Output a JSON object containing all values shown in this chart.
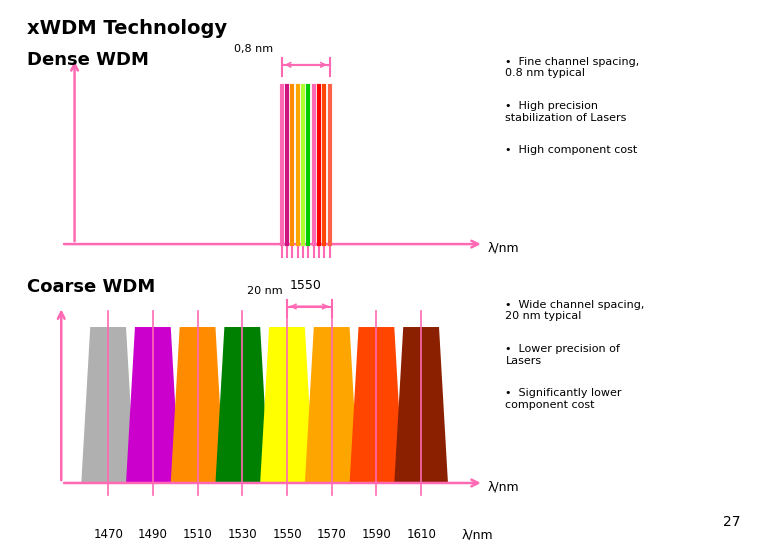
{
  "title": "xWDM Technology",
  "bg_color": "#ffffff",
  "pink": "#FF69B4",
  "dense_label": "Dense WDM",
  "coarse_label": "Coarse WDM",
  "dense_bullets": [
    "Fine channel spacing,\n0.8 nm typical",
    "High precision\nstabilization of Lasers",
    "High component cost"
  ],
  "coarse_bullets": [
    "Wide channel spacing,\n20 nm typical",
    "Lower precision of\nLasers",
    "Significantly lower\ncomponent cost"
  ],
  "dense_spacing_label": "0,8 nm",
  "coarse_spacing_label": "20 nm",
  "dense_colors": [
    "#FF69B4",
    "#CC1480",
    "#FF8C00",
    "#FFA500",
    "#ADFF2F",
    "#00CC00",
    "#FF69B4",
    "#FF0000",
    "#FF4500",
    "#FF6347"
  ],
  "coarse_colors": [
    "#B0B0B0",
    "#CC00CC",
    "#FF8C00",
    "#008000",
    "#FFFF00",
    "#FFA500",
    "#FF4500",
    "#8B2000"
  ],
  "coarse_wavelengths": [
    1470,
    1490,
    1510,
    1530,
    1550,
    1570,
    1590,
    1610
  ],
  "page_number": "27"
}
